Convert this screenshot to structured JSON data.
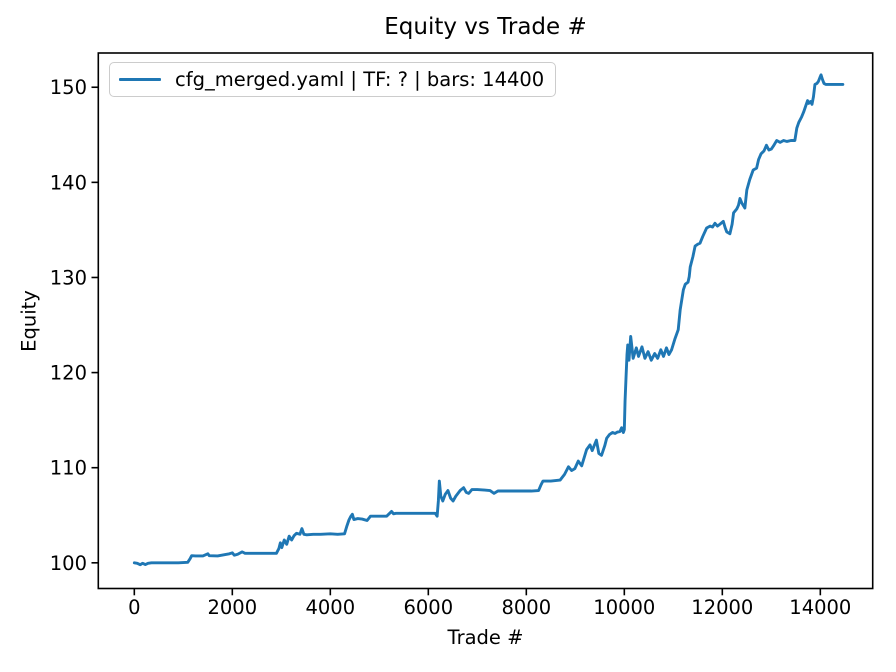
{
  "figure": {
    "background": "#ffffff"
  },
  "chart_data": {
    "type": "line",
    "title": "Equity vs Trade #",
    "xlabel": "Trade #",
    "ylabel": "Equity",
    "xlim": [
      -735,
      15069
    ],
    "ylim": [
      97.3,
      153.6
    ],
    "xticks": [
      0,
      2000,
      4000,
      6000,
      8000,
      10000,
      12000,
      14000
    ],
    "yticks": [
      100,
      110,
      120,
      130,
      140,
      150
    ],
    "grid": false,
    "line_color": "#1f77b4",
    "axis_color": "#000000",
    "legend": {
      "position": "upper left",
      "entries": [
        {
          "label": "cfg_merged.yaml | TF: ? | bars: 14400",
          "color": "#1f77b4"
        }
      ]
    },
    "series": [
      {
        "name": "cfg_merged.yaml | TF: ? | bars: 14400",
        "color": "#1f77b4",
        "x": [
          0,
          60,
          120,
          170,
          225,
          280,
          350,
          600,
          900,
          1090,
          1140,
          1170,
          1250,
          1400,
          1500,
          1530,
          1700,
          1940,
          2000,
          2040,
          2110,
          2200,
          2260,
          2350,
          2500,
          2700,
          2900,
          2950,
          2980,
          3010,
          3060,
          3110,
          3160,
          3210,
          3260,
          3310,
          3380,
          3420,
          3460,
          3520,
          3650,
          3800,
          4000,
          4150,
          4290,
          4340,
          4380,
          4420,
          4450,
          4480,
          4560,
          4650,
          4750,
          4820,
          5000,
          5150,
          5250,
          5290,
          5340,
          5500,
          5750,
          6000,
          6140,
          6180,
          6205,
          6225,
          6255,
          6295,
          6345,
          6400,
          6455,
          6505,
          6560,
          6650,
          6720,
          6775,
          6825,
          6890,
          7000,
          7150,
          7260,
          7340,
          7420,
          7600,
          7850,
          8100,
          8250,
          8300,
          8340,
          8500,
          8690,
          8780,
          8860,
          8925,
          8990,
          9060,
          9130,
          9230,
          9300,
          9345,
          9430,
          9480,
          9535,
          9600,
          9640,
          9700,
          9760,
          9810,
          9860,
          9910,
          9945,
          9980,
          10000,
          10015,
          10035,
          10055,
          10070,
          10095,
          10130,
          10180,
          10245,
          10290,
          10360,
          10420,
          10485,
          10550,
          10620,
          10680,
          10745,
          10800,
          10860,
          10910,
          10965,
          11030,
          11100,
          11140,
          11205,
          11245,
          11300,
          11325,
          11345,
          11400,
          11445,
          11500,
          11545,
          11600,
          11680,
          11750,
          11800,
          11850,
          11900,
          11950,
          12020,
          12060,
          12090,
          12155,
          12200,
          12230,
          12295,
          12330,
          12360,
          12400,
          12460,
          12500,
          12560,
          12630,
          12700,
          12740,
          12790,
          12850,
          12900,
          12950,
          13000,
          13040,
          13110,
          13180,
          13250,
          13320,
          13400,
          13480,
          13520,
          13560,
          13620,
          13660,
          13700,
          13740,
          13760,
          13800,
          13830,
          13860,
          13890,
          13930,
          13960,
          13990,
          14015,
          14045,
          14075,
          14110,
          14200,
          14300,
          14400,
          14460
        ],
        "y": [
          100.0,
          99.95,
          99.8,
          99.95,
          99.82,
          99.95,
          100.0,
          100.0,
          100.0,
          100.05,
          100.45,
          100.75,
          100.72,
          100.72,
          100.95,
          100.75,
          100.72,
          100.95,
          101.05,
          100.8,
          100.9,
          101.15,
          101.0,
          101.0,
          101.0,
          101.0,
          101.0,
          101.5,
          102.1,
          101.6,
          102.4,
          101.95,
          102.8,
          102.4,
          102.85,
          103.1,
          103.0,
          103.6,
          103.0,
          102.95,
          103.0,
          103.0,
          103.05,
          103.0,
          103.05,
          103.9,
          104.5,
          104.9,
          105.1,
          104.55,
          104.65,
          104.6,
          104.45,
          104.9,
          104.9,
          104.9,
          105.4,
          105.15,
          105.2,
          105.2,
          105.2,
          105.2,
          105.2,
          104.9,
          106.5,
          108.6,
          107.0,
          106.5,
          107.2,
          107.6,
          106.8,
          106.5,
          107.0,
          107.6,
          107.9,
          107.4,
          107.3,
          107.7,
          107.7,
          107.65,
          107.6,
          107.3,
          107.55,
          107.55,
          107.55,
          107.55,
          107.6,
          108.2,
          108.6,
          108.6,
          108.7,
          109.3,
          110.1,
          109.7,
          109.9,
          110.7,
          110.2,
          111.9,
          112.4,
          111.8,
          112.9,
          111.5,
          111.3,
          112.3,
          113.1,
          113.5,
          113.7,
          113.6,
          113.75,
          113.8,
          114.2,
          113.7,
          114.0,
          117.0,
          119.5,
          121.9,
          122.9,
          121.3,
          123.8,
          121.5,
          122.6,
          121.7,
          122.7,
          121.5,
          122.2,
          121.3,
          122.0,
          121.5,
          122.4,
          121.7,
          122.6,
          121.9,
          122.4,
          123.5,
          124.5,
          126.6,
          128.7,
          129.3,
          129.5,
          130.1,
          131.1,
          132.2,
          133.3,
          133.5,
          133.6,
          134.3,
          135.2,
          135.4,
          135.3,
          135.7,
          135.4,
          135.6,
          135.9,
          135.2,
          134.8,
          134.6,
          135.6,
          136.8,
          137.2,
          137.6,
          138.3,
          137.8,
          137.3,
          139.2,
          140.3,
          141.3,
          141.5,
          142.4,
          143.0,
          143.3,
          143.9,
          143.4,
          143.5,
          143.8,
          144.4,
          144.2,
          144.4,
          144.3,
          144.4,
          144.4,
          145.7,
          146.3,
          146.9,
          147.4,
          148.0,
          148.6,
          148.3,
          148.5,
          148.2,
          149.0,
          150.3,
          150.4,
          150.6,
          151.0,
          151.3,
          150.8,
          150.4,
          150.3,
          150.3,
          150.3,
          150.3,
          150.3
        ]
      }
    ]
  }
}
